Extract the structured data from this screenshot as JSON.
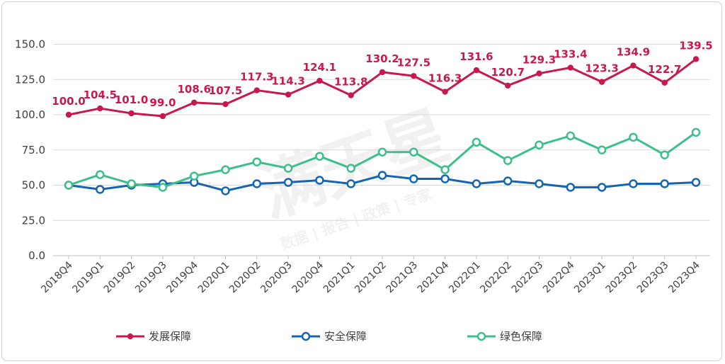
{
  "chart_data": {
    "type": "line",
    "categories": [
      "2018Q4",
      "2019Q1",
      "2019Q2",
      "2019Q3",
      "2019Q4",
      "2020Q1",
      "2020Q2",
      "2020Q3",
      "2020Q4",
      "2021Q1",
      "2021Q2",
      "2021Q3",
      "2021Q4",
      "2022Q1",
      "2022Q2",
      "2022Q3",
      "2022Q4",
      "2023Q1",
      "2023Q2",
      "2023Q3",
      "2023Q4"
    ],
    "series": [
      {
        "name": "发展保障",
        "color": "#c8194f",
        "values": [
          100.0,
          104.5,
          101.0,
          99.0,
          108.6,
          107.5,
          117.3,
          114.3,
          124.1,
          113.8,
          130.2,
          127.5,
          116.3,
          131.6,
          120.7,
          129.3,
          133.4,
          123.3,
          134.9,
          122.7,
          139.5
        ],
        "data_labels": [
          "100.0",
          "104.5",
          "101.0",
          "99.0",
          "108.6",
          "107.5",
          "117.3",
          "114.3",
          "124.1",
          "113.8",
          "130.2",
          "127.5",
          "116.3",
          "131.6",
          "120.7",
          "129.3",
          "133.4",
          "123.3",
          "134.9",
          "122.7",
          "139.5"
        ]
      },
      {
        "name": "安全保障",
        "color": "#1565b0",
        "values": [
          50,
          47,
          50,
          51,
          52,
          46,
          51,
          52,
          53.5,
          51,
          57,
          54.5,
          54.5,
          51,
          53,
          51,
          48.5,
          48.5,
          51,
          51,
          52
        ]
      },
      {
        "name": "绿色保障",
        "color": "#3dbf8a",
        "values": [
          50,
          57.5,
          51,
          48.5,
          56.5,
          61,
          66.5,
          62,
          70.5,
          62,
          73.5,
          73.5,
          61,
          80.5,
          67.5,
          78.5,
          85,
          75,
          84,
          71.5,
          87.5
        ]
      }
    ],
    "yticks": [
      "0.0",
      "25.0",
      "50.0",
      "75.0",
      "100.0",
      "125.0",
      "150.0"
    ],
    "ylim": [
      0,
      160
    ],
    "grid": "horizontal",
    "legend_position": "bottom"
  },
  "watermark": {
    "main": "满天星",
    "sub": "数据 | 报告 | 政策 | 专家"
  }
}
